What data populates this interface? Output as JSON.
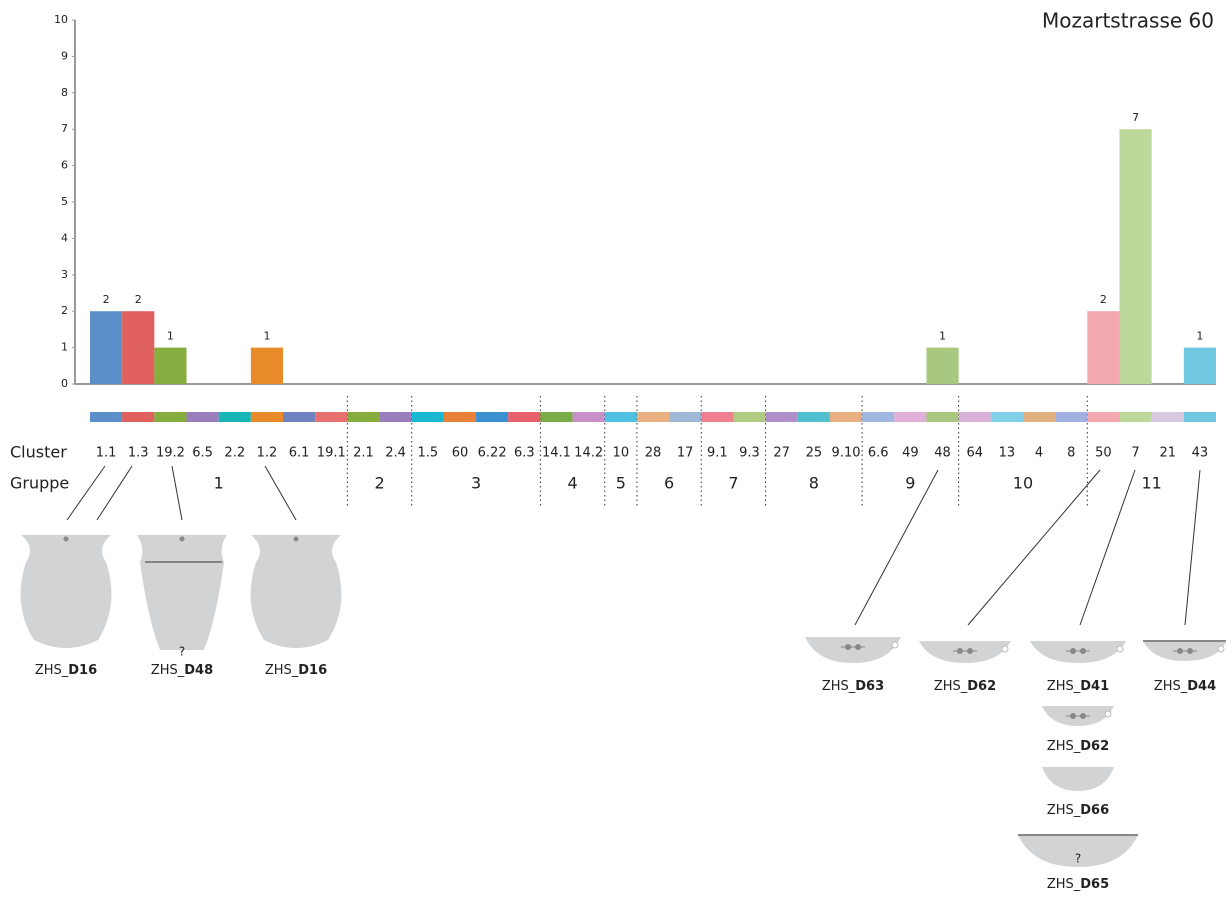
{
  "chart_data": {
    "type": "bar",
    "title": "Mozartstrasse 60",
    "category_label": "Cluster",
    "group_label": "Gruppe",
    "ylim": [
      0,
      10
    ],
    "yticks": [
      0,
      1,
      2,
      3,
      4,
      5,
      6,
      7,
      8,
      9,
      10
    ],
    "groups": [
      {
        "label": "1",
        "categories": [
          "1.1",
          "1.3",
          "19.2",
          "6.5",
          "2.2",
          "1.2",
          "6.1",
          "19.1"
        ],
        "values": [
          2,
          2,
          1,
          0,
          0,
          1,
          0,
          0
        ],
        "colors": [
          "#5b8fc9",
          "#e0605e",
          "#86ad3f",
          "#9a7dbb",
          "#17b5b5",
          "#e88a2a",
          "#6f82c0",
          "#e87070"
        ]
      },
      {
        "label": "2",
        "categories": [
          "2.1",
          "2.4"
        ],
        "values": [
          0,
          0
        ],
        "colors": [
          "#86ad3f",
          "#9a7dbb"
        ]
      },
      {
        "label": "3",
        "categories": [
          "1.5",
          "60",
          "6.22",
          "6.3"
        ],
        "values": [
          0,
          0,
          0,
          0
        ],
        "colors": [
          "#18b8d0",
          "#e8803a",
          "#3a90d0",
          "#e8606a"
        ]
      },
      {
        "label": "4",
        "categories": [
          "14.1",
          "14.2"
        ],
        "values": [
          0,
          0
        ],
        "colors": [
          "#7aad48",
          "#c890c8"
        ]
      },
      {
        "label": "5",
        "categories": [
          "10"
        ],
        "values": [
          0
        ],
        "colors": [
          "#50c0e0"
        ]
      },
      {
        "label": "6",
        "categories": [
          "28",
          "17"
        ],
        "values": [
          0,
          0
        ],
        "colors": [
          "#e8b080",
          "#a0b8d8"
        ]
      },
      {
        "label": "7",
        "categories": [
          "9.1",
          "9.3"
        ],
        "values": [
          0,
          0
        ],
        "colors": [
          "#f08090",
          "#b0cc80"
        ]
      },
      {
        "label": "8",
        "categories": [
          "27",
          "25",
          "9.10"
        ],
        "values": [
          0,
          0,
          0
        ],
        "colors": [
          "#b090c8",
          "#50c0d0",
          "#e8b080"
        ]
      },
      {
        "label": "9",
        "categories": [
          "6.6",
          "49",
          "48"
        ],
        "values": [
          0,
          0,
          1
        ],
        "colors": [
          "#a0b8e0",
          "#e0b0d8",
          "#a8c880"
        ]
      },
      {
        "label": "10",
        "categories": [
          "64",
          "13",
          "4",
          "8"
        ],
        "values": [
          0,
          0,
          0,
          0
        ],
        "colors": [
          "#d8b0d8",
          "#80d0e8",
          "#e0b080",
          "#a0b0e0"
        ]
      },
      {
        "label": "11",
        "categories": [
          "50",
          "7",
          "21",
          "43"
        ],
        "values": [
          2,
          7,
          0,
          1
        ],
        "colors": [
          "#f4a8b0",
          "#bcd89a",
          "#d8c8e0",
          "#70c8e0"
        ]
      }
    ]
  },
  "vessels": [
    {
      "prefix": "ZHS_",
      "code": "D16"
    },
    {
      "prefix": "ZHS_",
      "code": "D48",
      "note": "?"
    },
    {
      "prefix": "ZHS_",
      "code": "D16"
    },
    {
      "prefix": "ZHS_",
      "code": "D63"
    },
    {
      "prefix": "ZHS_",
      "code": "D62"
    },
    {
      "prefix": "ZHS_",
      "code": "D41"
    },
    {
      "prefix": "ZHS_",
      "code": "D44"
    },
    {
      "prefix": "ZHS_",
      "code": "D62"
    },
    {
      "prefix": "ZHS_",
      "code": "D66"
    },
    {
      "prefix": "ZHS_",
      "code": "D65",
      "note": "?"
    }
  ]
}
